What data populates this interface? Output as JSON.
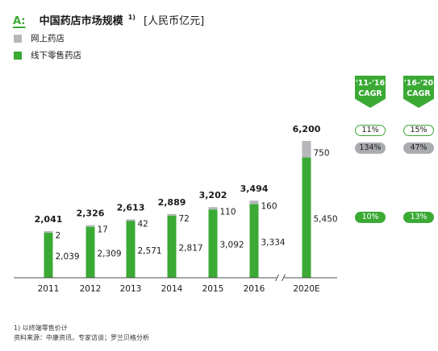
{
  "header": {
    "panel_label": "A:"
  },
  "colors": {
    "accent": "#3aaa35",
    "neutral_pill": "#a9abae"
  },
  "chart_data": {
    "type": "bar",
    "stacked": true,
    "title": "中国药店市场规模",
    "title_note": "1)",
    "unit": "[人民币亿元]",
    "categories": [
      "2011",
      "2012",
      "2013",
      "2014",
      "2015",
      "2016",
      "2020E"
    ],
    "ylim": [
      0,
      6200
    ],
    "axis_break": true,
    "grid": false,
    "legend_position": "top-left",
    "series": [
      {
        "name": "网上药店",
        "color": "#b5b7ba",
        "values": [
          2,
          17,
          42,
          72,
          110,
          160,
          750
        ],
        "labels": [
          "2",
          "17",
          "42",
          "72",
          "110",
          "160",
          "750"
        ]
      },
      {
        "name": "线下零售药店",
        "color": "#3aaa35",
        "values": [
          2039,
          2309,
          2571,
          2817,
          3092,
          3334,
          5450
        ],
        "labels": [
          "2,039",
          "2,309",
          "2,571",
          "2,817",
          "3,092",
          "3,334",
          "5,450"
        ]
      }
    ],
    "totals": [
      2041,
      2326,
      2613,
      2889,
      3202,
      3494,
      6200
    ],
    "total_labels": [
      "2,041",
      "2,326",
      "2,613",
      "2,889",
      "3,202",
      "3,494",
      "6,200"
    ]
  },
  "cagr": {
    "columns": [
      {
        "period": "'11-'16",
        "label": "CAGR"
      },
      {
        "period": "'16-'20",
        "label": "CAGR"
      }
    ],
    "total": [
      "11%",
      "15%"
    ],
    "online": [
      "134%",
      "47%"
    ],
    "offline": [
      "10%",
      "13%"
    ]
  },
  "footnotes": [
    "1) 以终端零售价计",
    "资料来源：中康资讯，专家访谈；罗兰贝格分析"
  ]
}
